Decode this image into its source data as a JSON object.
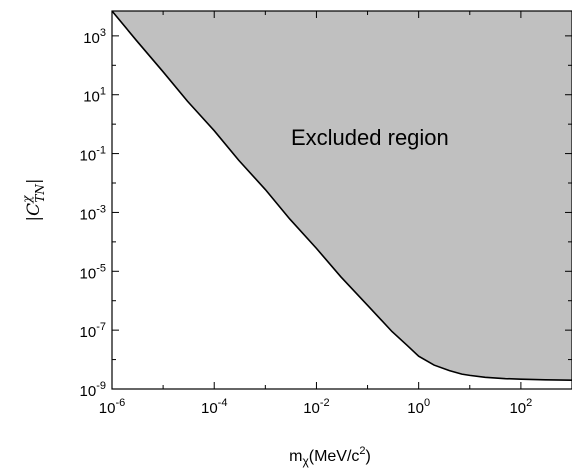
{
  "chart_data": {
    "type": "area",
    "x_scale": "log",
    "y_scale": "log",
    "xlim": [
      1e-06,
      1000
    ],
    "ylim": [
      1e-09,
      7000
    ],
    "x_ticks": [
      {
        "base": "10",
        "exp": "-6",
        "value": 1e-06
      },
      {
        "base": "10",
        "exp": "-4",
        "value": 0.0001
      },
      {
        "base": "10",
        "exp": "-2",
        "value": 0.01
      },
      {
        "base": "10",
        "exp": "0",
        "value": 1
      },
      {
        "base": "10",
        "exp": "2",
        "value": 100
      }
    ],
    "y_ticks": [
      {
        "base": "10",
        "exp": "-9",
        "value": 1e-09
      },
      {
        "base": "10",
        "exp": "-7",
        "value": 1e-07
      },
      {
        "base": "10",
        "exp": "-5",
        "value": 1e-05
      },
      {
        "base": "10",
        "exp": "-3",
        "value": 0.001
      },
      {
        "base": "10",
        "exp": "-1",
        "value": 0.1
      },
      {
        "base": "10",
        "exp": "1",
        "value": 10
      },
      {
        "base": "10",
        "exp": "3",
        "value": 1000
      }
    ],
    "xlabel": {
      "main": "m",
      "sub": "χ",
      "rest": "(MeV/c",
      "sup": "2",
      "end": ")"
    },
    "ylabel": {
      "pre": "|C",
      "sup": "χ",
      "sub": "TN",
      "post": "|"
    },
    "annotation": "Excluded region",
    "fill_color": "#c0c0c0",
    "line_color": "#000000",
    "series": [
      {
        "x": [
          1e-06,
          3e-06,
          1e-05,
          3e-05,
          0.0001,
          0.0003,
          0.001,
          0.003,
          0.01,
          0.03,
          0.1,
          0.3,
          0.6,
          1,
          2,
          4,
          7,
          10,
          20,
          50,
          100,
          300,
          1000
        ],
        "y": [
          7000,
          700,
          60,
          6,
          0.6,
          0.06,
          0.006,
          0.0006,
          6e-05,
          6.5e-06,
          7e-07,
          9e-08,
          3e-08,
          1.3e-08,
          6.5e-09,
          4.2e-09,
          3.2e-09,
          2.9e-09,
          2.5e-09,
          2.25e-09,
          2.15e-09,
          2.05e-09,
          2e-09
        ]
      }
    ]
  }
}
